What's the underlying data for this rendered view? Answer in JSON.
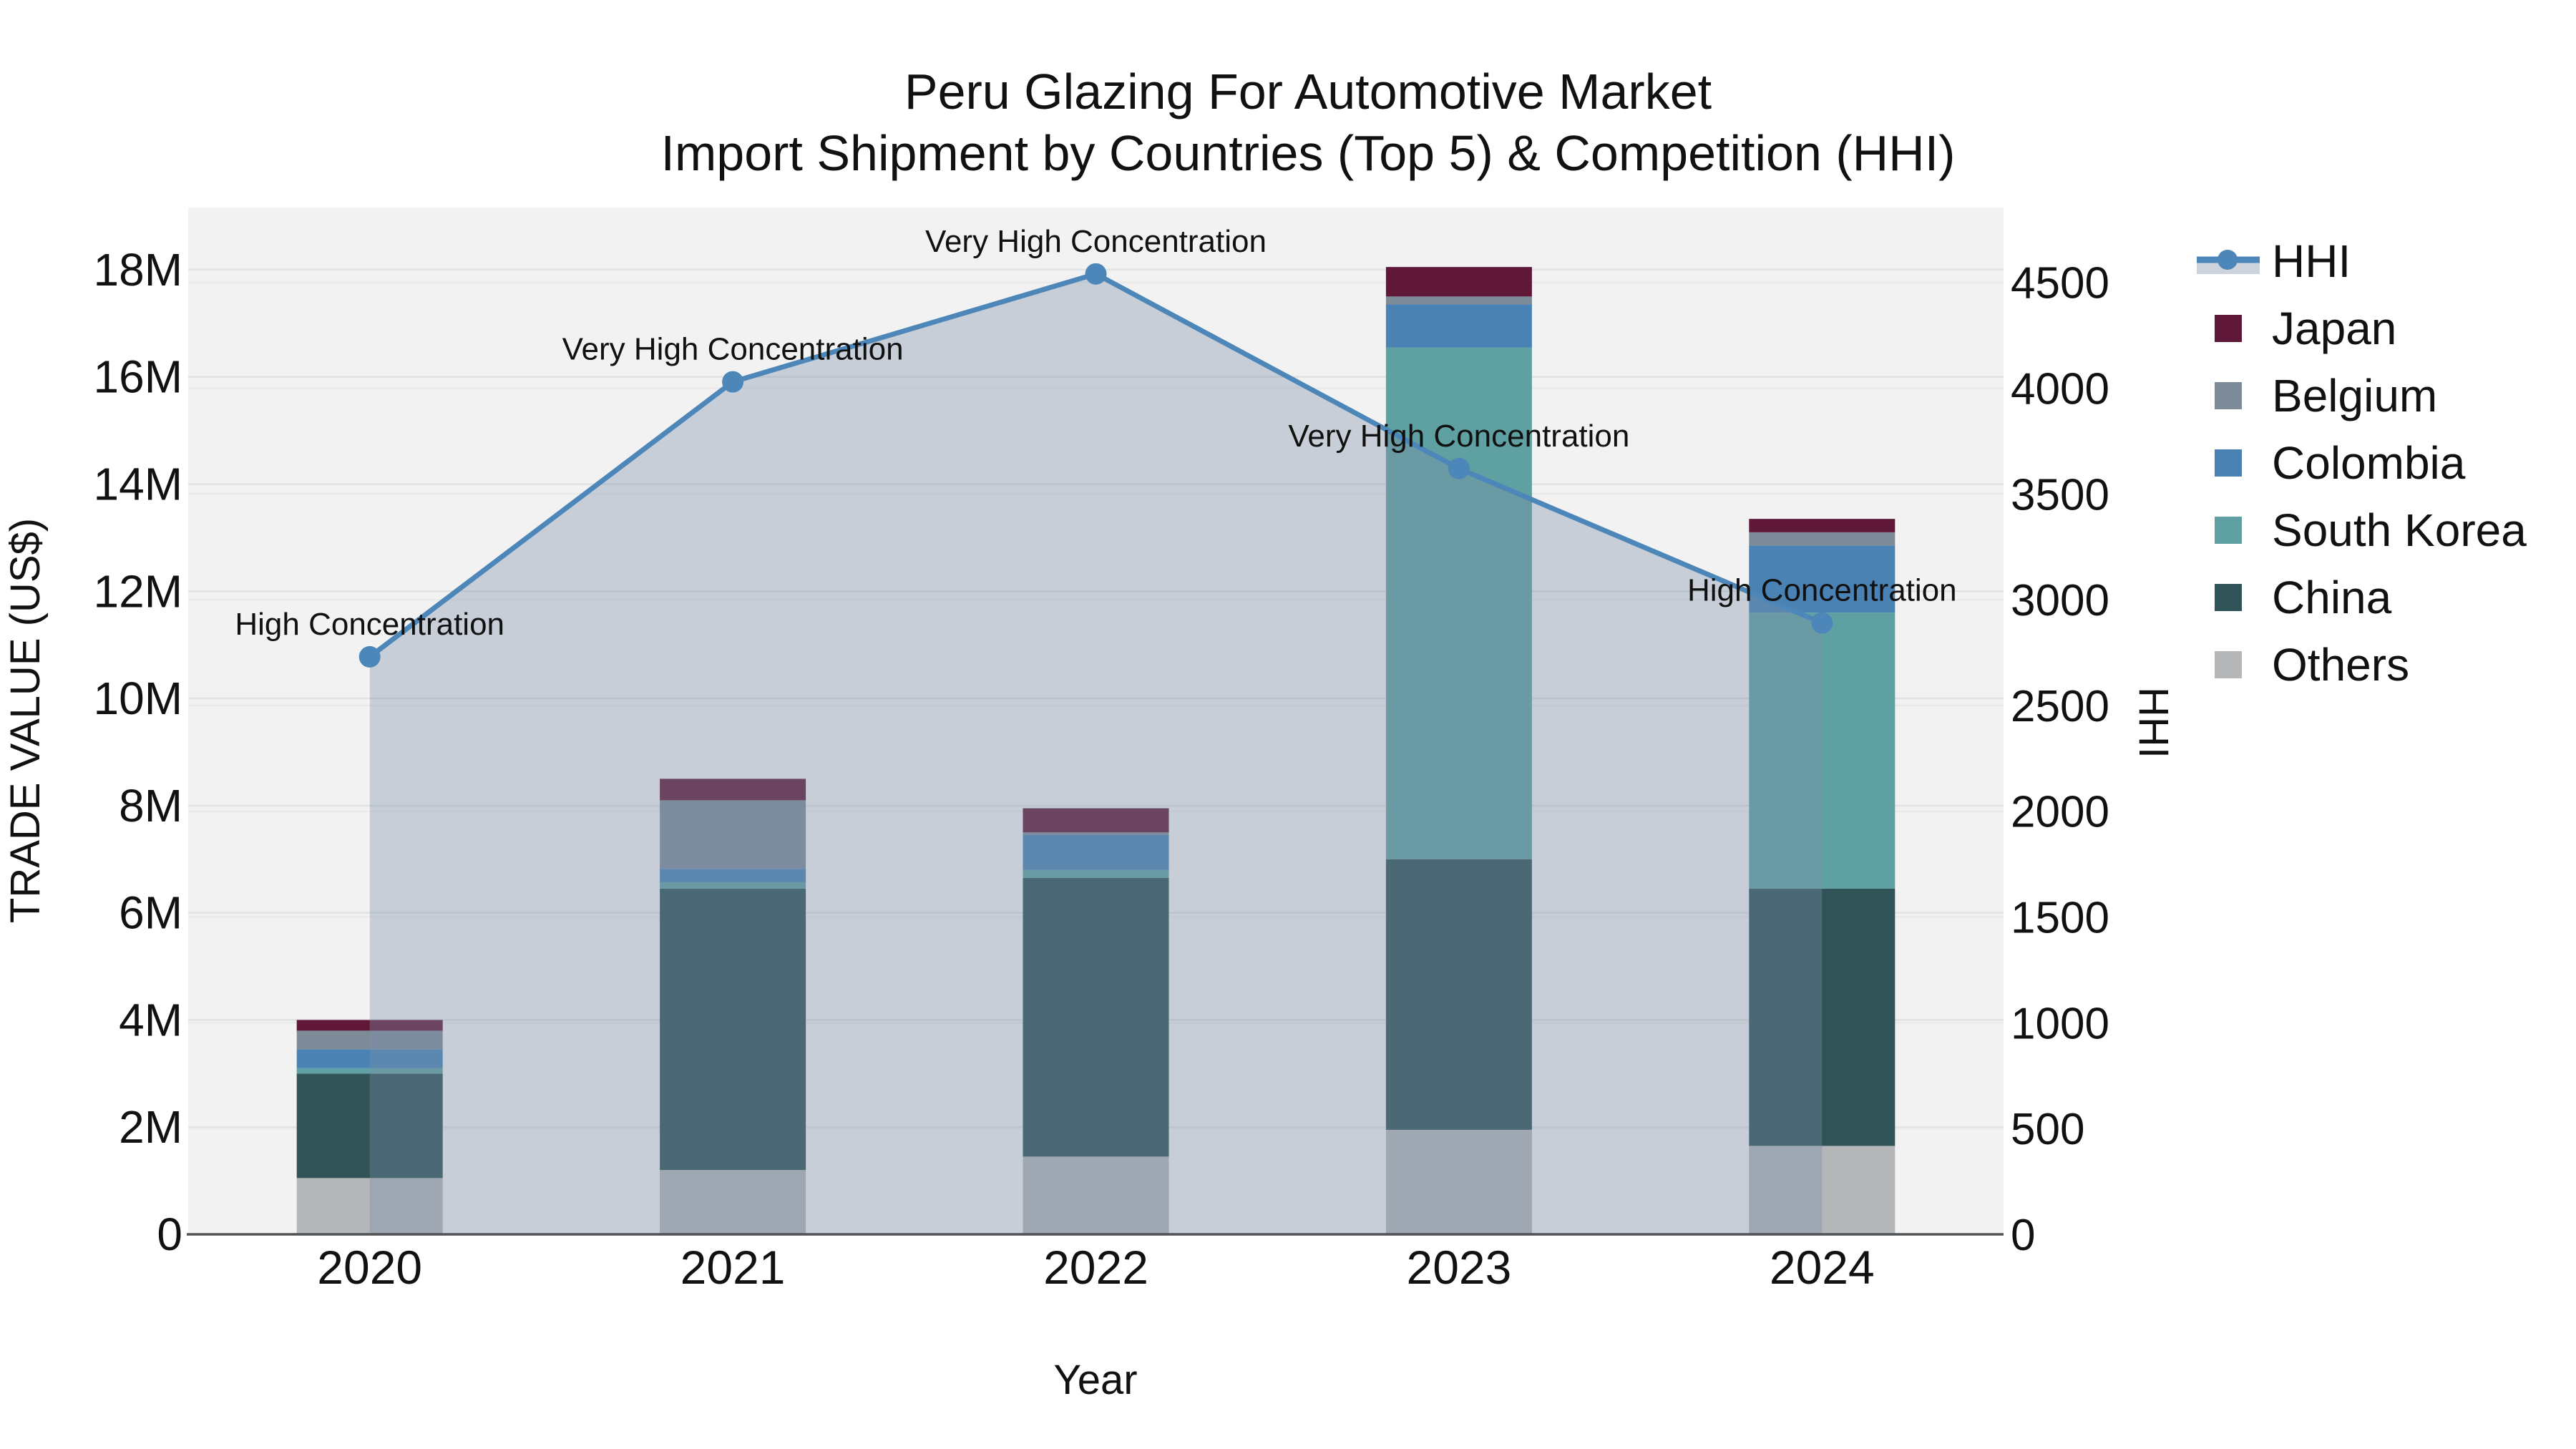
{
  "chart_data": {
    "type": "combo-stacked-bar-line",
    "title_line1": "Peru Glazing For Automotive Market",
    "title_line2": "Import Shipment by Countries (Top 5) & Competition (HHI)",
    "xlabel": "Year",
    "ylabel_left": "TRADE VALUE (US$)",
    "ylabel_right": "HHI",
    "categories": [
      "2020",
      "2021",
      "2022",
      "2023",
      "2024"
    ],
    "series": [
      {
        "name": "Others",
        "color": "#b4b6b8",
        "values": [
          1050000,
          1200000,
          1450000,
          1950000,
          1650000
        ]
      },
      {
        "name": "China",
        "color": "#2f5357",
        "values": [
          1950000,
          5250000,
          5200000,
          5050000,
          4800000
        ]
      },
      {
        "name": "South Korea",
        "color": "#5fa0a2",
        "values": [
          100000,
          120000,
          150000,
          9550000,
          5150000
        ]
      },
      {
        "name": "Colombia",
        "color": "#4a82b4",
        "values": [
          350000,
          250000,
          650000,
          800000,
          1250000
        ]
      },
      {
        "name": "Belgium",
        "color": "#7d8b99",
        "values": [
          350000,
          1280000,
          50000,
          150000,
          250000
        ]
      },
      {
        "name": "Japan",
        "color": "#601838",
        "values": [
          200000,
          400000,
          450000,
          550000,
          250000
        ]
      }
    ],
    "hhi": {
      "name": "HHI",
      "values": [
        2730,
        4030,
        4540,
        3620,
        2890
      ],
      "line_color": "#4d86b8",
      "area_color": "rgba(125,145,167,0.37)",
      "legend_band_color": "#ccd3dc"
    },
    "annotations": [
      "High Concentration",
      "Very High Concentration",
      "Very High Concentration",
      "Very High Concentration",
      "High Concentration"
    ],
    "left_ticks": [
      {
        "v": 0,
        "label": "0"
      },
      {
        "v": 2000000,
        "label": "2M"
      },
      {
        "v": 4000000,
        "label": "4M"
      },
      {
        "v": 6000000,
        "label": "6M"
      },
      {
        "v": 8000000,
        "label": "8M"
      },
      {
        "v": 10000000,
        "label": "10M"
      },
      {
        "v": 12000000,
        "label": "12M"
      },
      {
        "v": 14000000,
        "label": "14M"
      },
      {
        "v": 16000000,
        "label": "16M"
      },
      {
        "v": 18000000,
        "label": "18M"
      }
    ],
    "right_ticks": [
      {
        "v": 0,
        "label": "0"
      },
      {
        "v": 500,
        "label": "500"
      },
      {
        "v": 1000,
        "label": "1000"
      },
      {
        "v": 1500,
        "label": "1500"
      },
      {
        "v": 2000,
        "label": "2000"
      },
      {
        "v": 2500,
        "label": "2500"
      },
      {
        "v": 3000,
        "label": "3000"
      },
      {
        "v": 3500,
        "label": "3500"
      },
      {
        "v": 4000,
        "label": "4000"
      },
      {
        "v": 4500,
        "label": "4500"
      }
    ],
    "ylim_left": [
      0,
      19160000
    ],
    "ylim_right": [
      0,
      4854
    ],
    "legend": {
      "position": "right",
      "items": [
        {
          "label": "HHI",
          "type": "line"
        },
        {
          "label": "Japan",
          "type": "swatch",
          "color": "#601838"
        },
        {
          "label": "Belgium",
          "type": "swatch",
          "color": "#7d8b99"
        },
        {
          "label": "Colombia",
          "type": "swatch",
          "color": "#4a82b4"
        },
        {
          "label": "South Korea",
          "type": "swatch",
          "color": "#5fa0a2"
        },
        {
          "label": "China",
          "type": "swatch",
          "color": "#2f5357"
        },
        {
          "label": "Others",
          "type": "swatch",
          "color": "#b4b6b8"
        }
      ]
    },
    "style": {
      "plot_bg": "#f2f2f2",
      "grid_left_color": "#e0e2e3",
      "grid_right_color": "#eaeaea",
      "axis_line_color": "#505356",
      "text_color": "#111111"
    },
    "grid": true
  }
}
